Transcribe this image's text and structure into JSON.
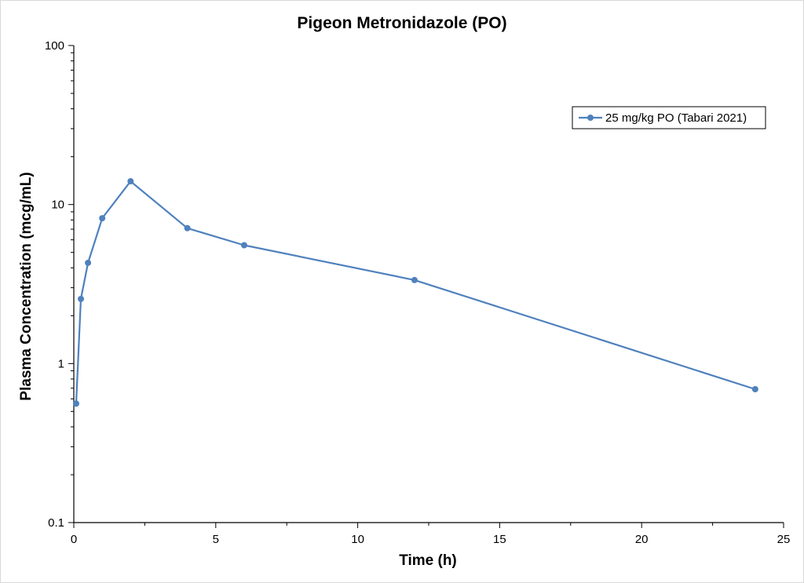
{
  "chart_data": {
    "type": "line",
    "title": "Pigeon Metronidazole (PO)",
    "xlabel": "Time (h)",
    "ylabel": "Plasma Concentration (mcg/mL)",
    "xlim": [
      0,
      25
    ],
    "ylim": [
      0.1,
      100
    ],
    "yscale": "log",
    "xticks": [
      0,
      5,
      10,
      15,
      20,
      25
    ],
    "xtick_labels": [
      "0",
      "5",
      "10",
      "15",
      "20",
      "25"
    ],
    "yticks": [
      0.1,
      1,
      10,
      100
    ],
    "ytick_labels": [
      "0.1",
      "1",
      "10",
      "100"
    ],
    "grid": false,
    "legend_position": "top-right",
    "series": [
      {
        "name": "25 mg/kg PO (Tabari 2021)",
        "color": "#4F81BD",
        "marker": "circle",
        "x": [
          0.083,
          0.25,
          0.5,
          1,
          2,
          4,
          6,
          12,
          24
        ],
        "y": [
          0.56,
          2.55,
          4.3,
          8.2,
          14.0,
          7.1,
          5.55,
          3.35,
          0.69
        ]
      }
    ]
  }
}
